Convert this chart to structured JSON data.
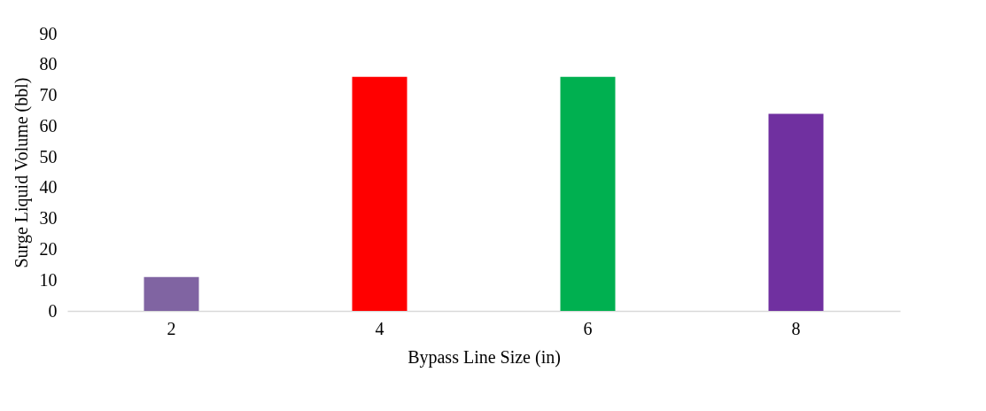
{
  "chart_data": {
    "type": "bar",
    "xlabel": "Bypass Line Size (in)",
    "ylabel": "Surge Liquid Volume (bbl)",
    "categories": [
      "2",
      "4",
      "6",
      "8"
    ],
    "values": [
      11,
      76,
      76,
      64
    ],
    "colors": [
      "#8064a2",
      "#ff0000",
      "#00b050",
      "#7030a0"
    ],
    "ylim": [
      0,
      90
    ],
    "yticks": [
      0,
      10,
      20,
      30,
      40,
      50,
      60,
      70,
      80,
      90
    ],
    "grid": false
  }
}
